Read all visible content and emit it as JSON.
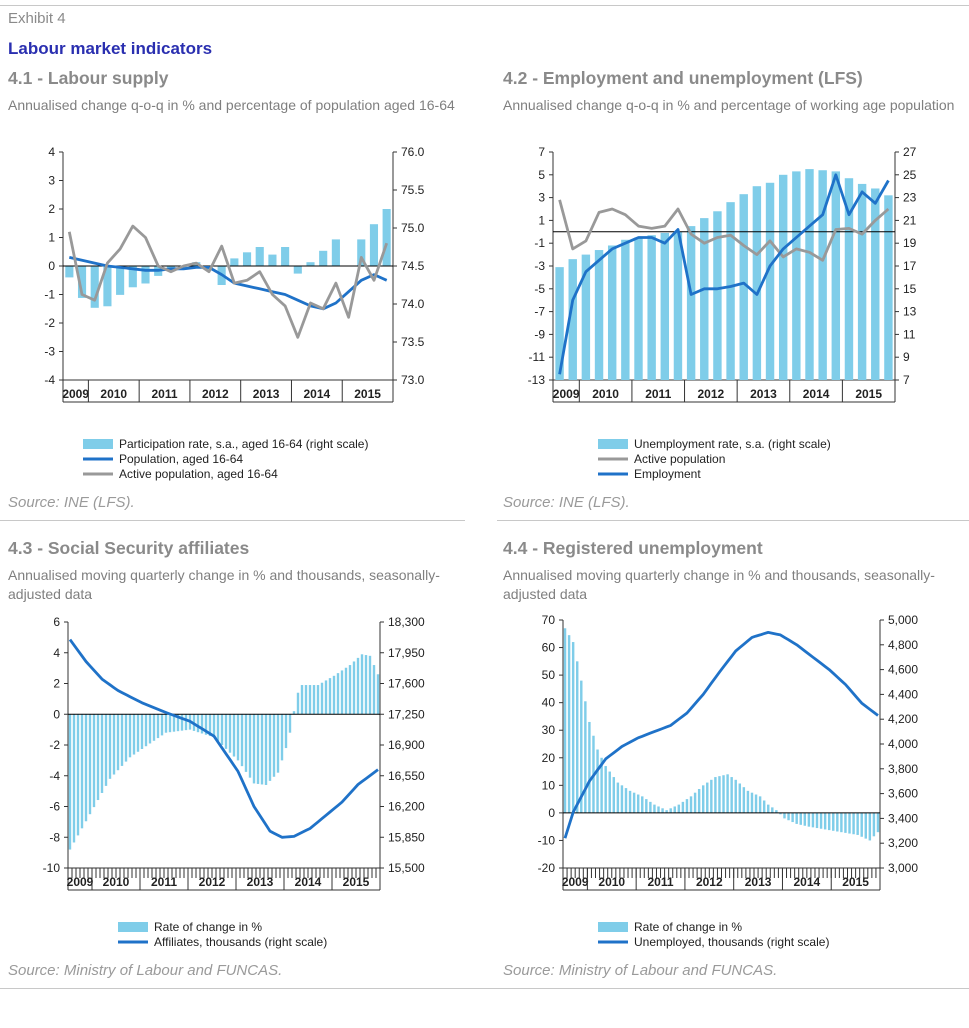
{
  "exhibit_label": "Exhibit 4",
  "main_title": "Labour market indicators",
  "chart_data": [
    {
      "id": "p41",
      "type": "bar+line",
      "title": "4.1 - Labour supply",
      "subtitle": "Annualised change q-o-q in % and percentage of population aged 16-64",
      "source": "Source: INE (LFS).",
      "ylim_left": [
        -4,
        4
      ],
      "yticks_left": [
        "4",
        "3",
        "2",
        "1",
        "0",
        "-1",
        "-2",
        "-3",
        "-4"
      ],
      "ylim_right": [
        73.0,
        76.0
      ],
      "yticks_right": [
        "76.0",
        "75.5",
        "75.0",
        "74.5",
        "74.0",
        "73.5",
        "73.0"
      ],
      "year_labels": [
        "2009",
        "2010",
        "2011",
        "2012",
        "2013",
        "2014",
        "2015"
      ],
      "quarters": 26,
      "bar_baseline": 74.5,
      "legend": [
        "Participation rate, s.a., aged 16-64 (right scale)",
        "Population, aged 16-64",
        "Active population, aged 16-64"
      ],
      "series": [
        {
          "kind": "bar",
          "axis": "right",
          "color": "#7fcde9",
          "values": [
            74.35,
            74.08,
            73.95,
            73.97,
            74.12,
            74.22,
            74.27,
            74.37,
            74.45,
            74.48,
            74.55,
            74.45,
            74.25,
            74.6,
            74.68,
            74.75,
            74.65,
            74.75,
            74.4,
            74.55,
            74.7,
            74.85,
            74.5,
            74.85,
            75.05,
            75.25
          ]
        },
        {
          "kind": "line",
          "axis": "left",
          "color": "#1f72c8",
          "width": 2.8,
          "values": [
            0.3,
            0.2,
            0.1,
            0.0,
            -0.05,
            -0.1,
            -0.15,
            -0.15,
            -0.1,
            -0.1,
            -0.05,
            -0.05,
            -0.3,
            -0.6,
            -0.7,
            -0.8,
            -0.9,
            -1.0,
            -1.2,
            -1.4,
            -1.5,
            -1.3,
            -0.9,
            -0.5,
            -0.3,
            -0.5
          ]
        },
        {
          "kind": "line",
          "axis": "left",
          "color": "#999999",
          "width": 2.8,
          "values": [
            1.2,
            -1.0,
            -1.2,
            0.1,
            0.6,
            1.4,
            1.0,
            0.0,
            -0.2,
            0.0,
            0.1,
            -0.2,
            0.7,
            -0.6,
            -0.5,
            -0.2,
            -1.0,
            -1.4,
            -2.5,
            -1.3,
            -1.5,
            -0.6,
            -1.8,
            0.3,
            -0.5,
            0.8
          ]
        }
      ]
    },
    {
      "id": "p42",
      "type": "bar+line",
      "title": "4.2 - Employment and unemployment (LFS)",
      "subtitle": "Annualised change q-o-q in % and percentage of working age population",
      "source": "Source: INE (LFS).",
      "ylim_left": [
        -13,
        7
      ],
      "yticks_left": [
        "7",
        "5",
        "3",
        "1",
        "-1",
        "-3",
        "-5",
        "-7",
        "-9",
        "-11",
        "-13"
      ],
      "ylim_right": [
        7,
        27
      ],
      "yticks_right": [
        "27",
        "25",
        "23",
        "21",
        "19",
        "17",
        "15",
        "13",
        "11",
        "9",
        "7"
      ],
      "year_labels": [
        "2009",
        "2010",
        "2011",
        "2012",
        "2013",
        "2014",
        "2015"
      ],
      "quarters": 26,
      "bar_baseline": 20,
      "legend": [
        "Unemployment rate, s.a. (right scale)",
        "Active population",
        "Employment"
      ],
      "series": [
        {
          "kind": "bar",
          "axis": "right",
          "color": "#7fcde9",
          "values": [
            16.9,
            17.6,
            18.0,
            18.4,
            18.8,
            19.3,
            19.5,
            19.7,
            19.9,
            20.0,
            20.5,
            21.2,
            21.8,
            22.6,
            23.3,
            24.0,
            24.3,
            25.0,
            25.3,
            25.5,
            25.4,
            25.3,
            24.7,
            24.2,
            23.8,
            23.2
          ]
        },
        {
          "kind": "line",
          "axis": "left",
          "color": "#999999",
          "width": 2.8,
          "values": [
            2.8,
            -1.5,
            -0.8,
            1.7,
            2.0,
            1.5,
            0.5,
            0.3,
            0.5,
            2.0,
            -0.2,
            -1.0,
            -0.5,
            -0.3,
            -1.2,
            -2.0,
            -0.8,
            -2.2,
            -1.5,
            -1.8,
            -2.5,
            0.2,
            0.3,
            -0.2,
            1.0,
            2.0
          ]
        },
        {
          "kind": "line",
          "axis": "left",
          "color": "#1f72c8",
          "width": 2.8,
          "values": [
            -12.5,
            -6.0,
            -3.5,
            -2.5,
            -1.5,
            -1.0,
            -0.5,
            -0.5,
            -1.0,
            0.2,
            -5.5,
            -5.0,
            -5.0,
            -4.8,
            -4.5,
            -5.5,
            -3.0,
            -1.5,
            -0.5,
            0.5,
            1.5,
            5.0,
            1.5,
            3.5,
            2.5,
            4.5
          ]
        }
      ]
    },
    {
      "id": "p43",
      "type": "bar+line",
      "title": "4.3 - Social Security affiliates",
      "subtitle": "Annualised moving quarterly change in % and thousands, seasonally-adjusted data",
      "source": "Source: Ministry of Labour and FUNCAS.",
      "ylim_left": [
        -10,
        6
      ],
      "yticks_left": [
        "6",
        "4",
        "2",
        "0",
        "-2",
        "-4",
        "-6",
        "-8",
        "-10"
      ],
      "ylim_right": [
        15500,
        18300
      ],
      "yticks_right": [
        "18,300",
        "17,950",
        "17,600",
        "17,250",
        "16,900",
        "16,550",
        "16,200",
        "15,850",
        "15,500"
      ],
      "year_labels": [
        "2009",
        "2010",
        "2011",
        "2012",
        "2013",
        "2014",
        "2015"
      ],
      "months": 78,
      "legend": [
        "Rate of change in %",
        "Affiliates, thousands (right scale)"
      ],
      "bar_anchors": [
        [
          0,
          -8.8
        ],
        [
          5,
          -6.5
        ],
        [
          10,
          -4.2
        ],
        [
          15,
          -2.8
        ],
        [
          20,
          -1.9
        ],
        [
          24,
          -1.2
        ],
        [
          30,
          -1.0
        ],
        [
          36,
          -1.5
        ],
        [
          42,
          -3.0
        ],
        [
          46,
          -4.5
        ],
        [
          49,
          -4.6
        ],
        [
          52,
          -3.8
        ],
        [
          54,
          -2.2
        ],
        [
          55,
          -1.2
        ],
        [
          56,
          0.2
        ],
        [
          57,
          1.4
        ],
        [
          58,
          1.9
        ],
        [
          62,
          1.9
        ],
        [
          66,
          2.5
        ],
        [
          70,
          3.2
        ],
        [
          73,
          3.9
        ],
        [
          75,
          3.8
        ],
        [
          77,
          2.6
        ]
      ],
      "line_anchors": [
        [
          0,
          18100
        ],
        [
          4,
          17850
        ],
        [
          8,
          17650
        ],
        [
          12,
          17520
        ],
        [
          18,
          17380
        ],
        [
          24,
          17270
        ],
        [
          30,
          17170
        ],
        [
          36,
          17000
        ],
        [
          42,
          16600
        ],
        [
          46,
          16200
        ],
        [
          50,
          15920
        ],
        [
          53,
          15850
        ],
        [
          56,
          15860
        ],
        [
          60,
          15950
        ],
        [
          64,
          16100
        ],
        [
          68,
          16250
        ],
        [
          72,
          16450
        ],
        [
          77,
          16620
        ]
      ],
      "colors": {
        "bar": "#7fcde9",
        "line": "#1f72c8"
      }
    },
    {
      "id": "p44",
      "type": "bar+line",
      "title": "4.4 - Registered unemployment",
      "subtitle": "Annualised moving quarterly change in % and thousands, seasonally-adjusted data",
      "source": "Source: Ministry of Labour and FUNCAS.",
      "ylim_left": [
        -20,
        70
      ],
      "yticks_left": [
        "70",
        "60",
        "50",
        "40",
        "30",
        "20",
        "10",
        "0",
        "-10",
        "-20"
      ],
      "ylim_right": [
        3000,
        5000
      ],
      "yticks_right": [
        "5,000",
        "4,800",
        "4,600",
        "4,400",
        "4,200",
        "4,000",
        "3,800",
        "3,600",
        "3,400",
        "3,200",
        "3,000"
      ],
      "year_labels": [
        "2009",
        "2010",
        "2011",
        "2012",
        "2013",
        "2014",
        "2015"
      ],
      "months": 78,
      "legend": [
        "Rate of change in %",
        "Unemployed, thousands (right scale)"
      ],
      "bar_anchors": [
        [
          0,
          67
        ],
        [
          2,
          62
        ],
        [
          4,
          48
        ],
        [
          6,
          33
        ],
        [
          8,
          23
        ],
        [
          10,
          17
        ],
        [
          13,
          11
        ],
        [
          16,
          8
        ],
        [
          19,
          6
        ],
        [
          22,
          3
        ],
        [
          25,
          1
        ],
        [
          28,
          3
        ],
        [
          31,
          6
        ],
        [
          34,
          10
        ],
        [
          37,
          13
        ],
        [
          40,
          14
        ],
        [
          42,
          12
        ],
        [
          45,
          8
        ],
        [
          48,
          6
        ],
        [
          50,
          3
        ],
        [
          52,
          1
        ],
        [
          54,
          -2
        ],
        [
          57,
          -4
        ],
        [
          60,
          -5
        ],
        [
          64,
          -6
        ],
        [
          68,
          -7
        ],
        [
          72,
          -8
        ],
        [
          75,
          -10
        ],
        [
          77,
          -7
        ]
      ],
      "line_anchors": [
        [
          0,
          3240
        ],
        [
          2,
          3450
        ],
        [
          6,
          3700
        ],
        [
          10,
          3880
        ],
        [
          14,
          3980
        ],
        [
          18,
          4050
        ],
        [
          22,
          4100
        ],
        [
          26,
          4150
        ],
        [
          30,
          4250
        ],
        [
          34,
          4400
        ],
        [
          38,
          4580
        ],
        [
          42,
          4750
        ],
        [
          46,
          4860
        ],
        [
          50,
          4900
        ],
        [
          53,
          4880
        ],
        [
          57,
          4800
        ],
        [
          61,
          4700
        ],
        [
          65,
          4600
        ],
        [
          69,
          4480
        ],
        [
          73,
          4330
        ],
        [
          77,
          4230
        ]
      ],
      "colors": {
        "bar": "#7fcde9",
        "line": "#1f72c8"
      }
    }
  ]
}
